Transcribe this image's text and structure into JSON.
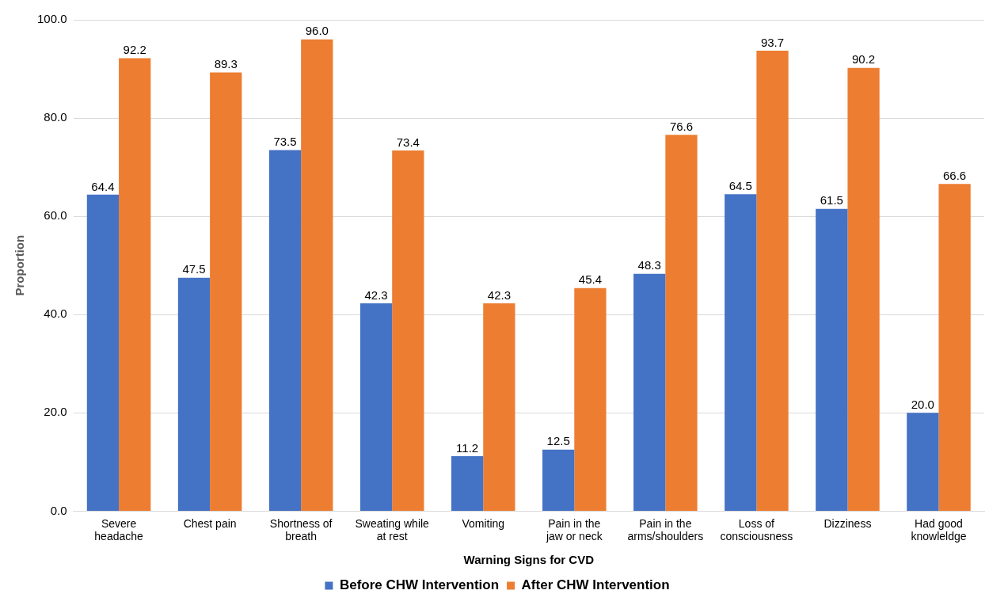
{
  "chart_data": {
    "type": "bar",
    "xlabel": "Warning Signs for CVD",
    "ylabel": "Proportion",
    "categories": [
      "Severe headache",
      "Chest pain",
      "Shortness of breath",
      "Sweating while at rest",
      "Vomiting",
      "Pain in the jaw or neck",
      "Pain in the arms/shoulders",
      "Loss of consciousness",
      "Dizziness",
      "Had good knowleldge"
    ],
    "series": [
      {
        "name": "Before CHW Intervention",
        "color": "#4472c4",
        "values": [
          64.4,
          47.5,
          73.5,
          42.3,
          11.2,
          12.5,
          48.3,
          64.5,
          61.5,
          20.0
        ],
        "value_labels": [
          "64.4",
          "47.5",
          "73.5",
          "42.3",
          "11.2",
          "12.5",
          "48.3",
          "64.5",
          "61.5",
          "20.0"
        ]
      },
      {
        "name": "After CHW Intervention",
        "color": "#ed7d31",
        "values": [
          92.2,
          89.3,
          96.0,
          73.4,
          42.3,
          45.4,
          76.6,
          93.7,
          90.2,
          66.6
        ],
        "value_labels": [
          "92.2",
          "89.3",
          "96.0",
          "73.4",
          "42.3",
          "45.4",
          "76.6",
          "93.7",
          "90.2",
          "66.6"
        ]
      }
    ],
    "ylim": [
      0,
      100
    ],
    "yticks": [
      {
        "value": 0,
        "label": "0.0"
      },
      {
        "value": 20,
        "label": "20.0"
      },
      {
        "value": 40,
        "label": "40.0"
      },
      {
        "value": 60,
        "label": "60.0"
      },
      {
        "value": 80,
        "label": "80.0"
      },
      {
        "value": 100,
        "label": "100.0"
      }
    ],
    "grid": "y",
    "legend": "bottom"
  }
}
